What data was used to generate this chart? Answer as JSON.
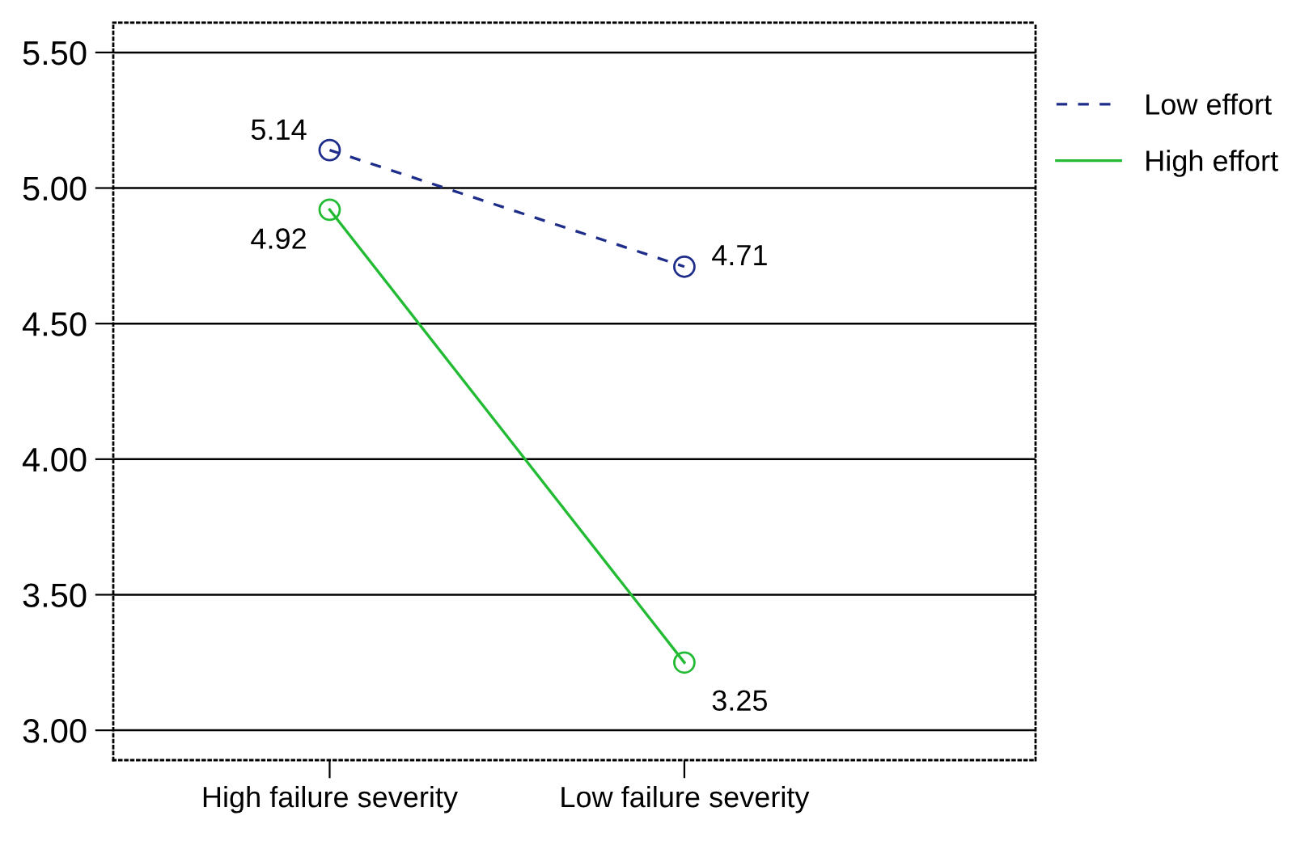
{
  "chart_data": {
    "type": "line",
    "categories": [
      "High failure severity",
      "Low failure severity"
    ],
    "series": [
      {
        "name": "Low effort",
        "color": "#1f2d8a",
        "values": [
          5.14,
          4.71
        ],
        "line_style": "dashed"
      },
      {
        "name": "High effort",
        "color": "#22bb33",
        "values": [
          4.92,
          3.25
        ],
        "line_style": "solid"
      }
    ],
    "ylim": [
      2.89,
      5.61
    ],
    "yticks": [
      {
        "value": 3.0,
        "label": "3.00"
      },
      {
        "value": 3.5,
        "label": "3.50"
      },
      {
        "value": 4.0,
        "label": "4.00"
      },
      {
        "value": 4.5,
        "label": "4.50"
      },
      {
        "value": 5.0,
        "label": "5.00"
      },
      {
        "value": 5.5,
        "label": "5.50"
      }
    ],
    "grid": "y",
    "legend": "right",
    "marker": "circle",
    "data_labels": true
  }
}
